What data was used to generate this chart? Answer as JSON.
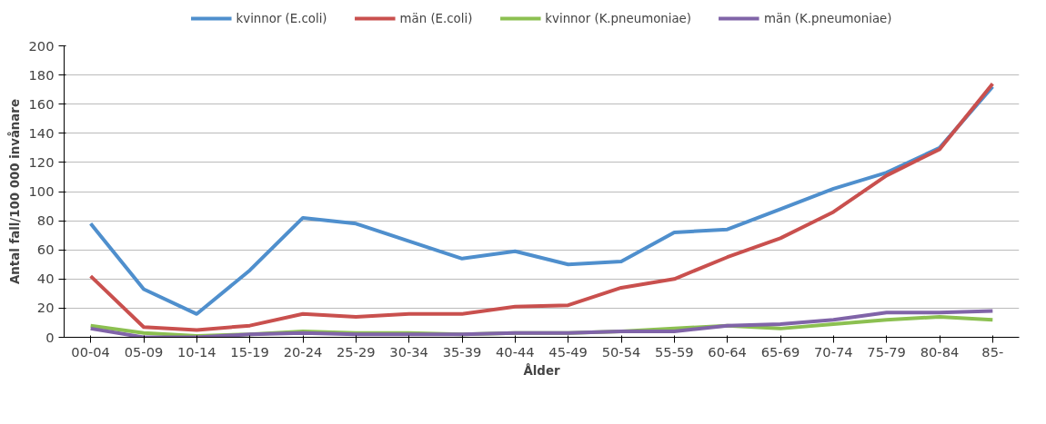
{
  "chart_data": {
    "type": "line",
    "xlabel": "Ålder",
    "ylabel": "Antal fall/100 000 invånare",
    "categories": [
      "00-04",
      "05-09",
      "10-14",
      "15-19",
      "20-24",
      "25-29",
      "30-34",
      "35-39",
      "40-44",
      "45-49",
      "50-54",
      "55-59",
      "60-64",
      "65-69",
      "70-74",
      "75-79",
      "80-84",
      "85-"
    ],
    "series": [
      {
        "name": "kvinnor (E.coli)",
        "color": "#4f8fcd",
        "values": [
          78,
          33,
          16,
          46,
          82,
          78,
          66,
          54,
          59,
          50,
          52,
          72,
          74,
          88,
          102,
          113,
          130,
          172
        ]
      },
      {
        "name": "män (E.coli)",
        "color": "#c9504e",
        "values": [
          42,
          7,
          5,
          8,
          16,
          14,
          16,
          16,
          21,
          22,
          34,
          40,
          55,
          68,
          86,
          111,
          129,
          174
        ]
      },
      {
        "name": "kvinnor (K.pneumoniae)",
        "color": "#8cc051",
        "values": [
          8,
          3,
          1,
          2,
          4,
          3,
          3,
          2,
          3,
          3,
          4,
          6,
          8,
          6,
          9,
          12,
          14,
          12
        ]
      },
      {
        "name": "män (K.pneumoniae)",
        "color": "#8064a8",
        "values": [
          6,
          0,
          0,
          2,
          3,
          2,
          2,
          2,
          3,
          3,
          4,
          4,
          8,
          9,
          12,
          17,
          17,
          18
        ]
      }
    ],
    "ylim": [
      0,
      200
    ],
    "yticks": [
      0,
      20,
      40,
      60,
      80,
      100,
      120,
      140,
      160,
      180,
      200
    ],
    "grid": "y",
    "legend": "top",
    "marker": "none",
    "line_style": "solid"
  }
}
